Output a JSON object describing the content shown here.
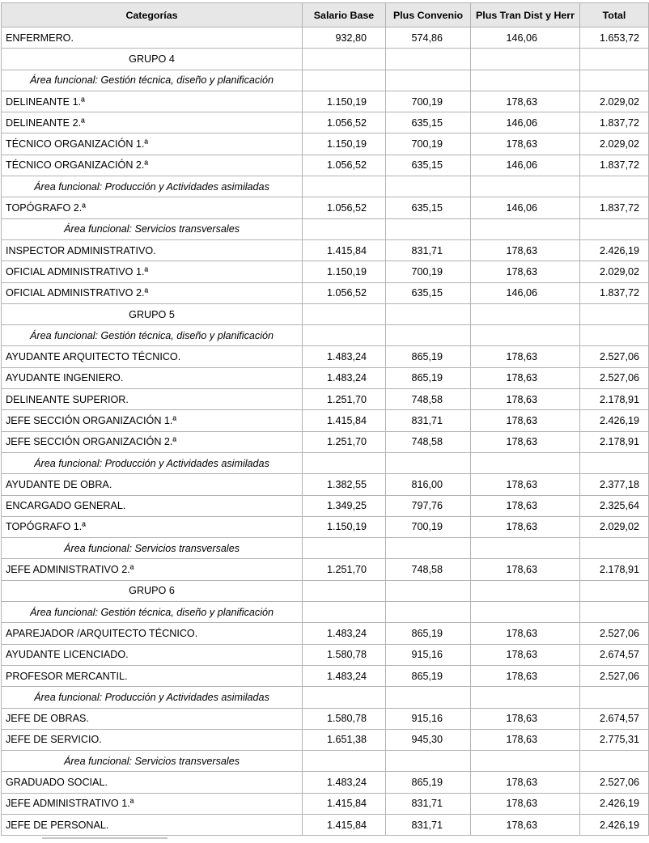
{
  "colors": {
    "header_bg": "#e7e7e7",
    "border": "#b2b2b2",
    "text": "#000000"
  },
  "table": {
    "columns": [
      {
        "key": "categoria",
        "label": "Categorías"
      },
      {
        "key": "salario_base",
        "label": "Salario Base"
      },
      {
        "key": "plus_convenio",
        "label": "Plus Convenio"
      },
      {
        "key": "plus_tran",
        "label": "Plus Tran Dist y Herr"
      },
      {
        "key": "total",
        "label": "Total"
      }
    ],
    "rows": [
      {
        "type": "data",
        "categoria": "ENFERMERO.",
        "salario_base": "932,80",
        "plus_convenio": "574,86",
        "plus_tran": "146,06",
        "total": "1.653,72"
      },
      {
        "type": "group",
        "categoria": "GRUPO 4"
      },
      {
        "type": "area",
        "categoria": "Área funcional: Gestión técnica, diseño y planificación"
      },
      {
        "type": "data",
        "categoria": "DELINEANTE 1.ª",
        "salario_base": "1.150,19",
        "plus_convenio": "700,19",
        "plus_tran": "178,63",
        "total": "2.029,02"
      },
      {
        "type": "data",
        "categoria": "DELINEANTE 2.ª",
        "salario_base": "1.056,52",
        "plus_convenio": "635,15",
        "plus_tran": "146,06",
        "total": "1.837,72"
      },
      {
        "type": "data",
        "categoria": "TÉCNICO ORGANIZACIÓN 1.ª",
        "salario_base": "1.150,19",
        "plus_convenio": "700,19",
        "plus_tran": "178,63",
        "total": "2.029,02"
      },
      {
        "type": "data",
        "categoria": "TÉCNICO ORGANIZACIÓN 2.ª",
        "salario_base": "1.056,52",
        "plus_convenio": "635,15",
        "plus_tran": "146,06",
        "total": "1.837,72"
      },
      {
        "type": "area",
        "categoria": "Área funcional: Producción y Actividades asimiladas"
      },
      {
        "type": "data",
        "categoria": "TOPÓGRAFO 2.ª",
        "salario_base": "1.056,52",
        "plus_convenio": "635,15",
        "plus_tran": "146,06",
        "total": "1.837,72"
      },
      {
        "type": "area",
        "categoria": "Área funcional: Servicios transversales"
      },
      {
        "type": "data",
        "categoria": "INSPECTOR ADMINISTRATIVO.",
        "salario_base": "1.415,84",
        "plus_convenio": "831,71",
        "plus_tran": "178,63",
        "total": "2.426,19"
      },
      {
        "type": "data",
        "categoria": "OFICIAL ADMINISTRATIVO 1.ª",
        "salario_base": "1.150,19",
        "plus_convenio": "700,19",
        "plus_tran": "178,63",
        "total": "2.029,02"
      },
      {
        "type": "data",
        "categoria": "OFICIAL ADMINISTRATIVO 2.ª",
        "salario_base": "1.056,52",
        "plus_convenio": "635,15",
        "plus_tran": "146,06",
        "total": "1.837,72"
      },
      {
        "type": "group",
        "categoria": "GRUPO 5"
      },
      {
        "type": "area",
        "categoria": "Área funcional: Gestión técnica, diseño y planificación"
      },
      {
        "type": "data",
        "categoria": "AYUDANTE ARQUITECTO TÉCNICO.",
        "salario_base": "1.483,24",
        "plus_convenio": "865,19",
        "plus_tran": "178,63",
        "total": "2.527,06"
      },
      {
        "type": "data",
        "categoria": "AYUDANTE INGENIERO.",
        "salario_base": "1.483,24",
        "plus_convenio": "865,19",
        "plus_tran": "178,63",
        "total": "2.527,06"
      },
      {
        "type": "data",
        "categoria": "DELINEANTE SUPERIOR.",
        "salario_base": "1.251,70",
        "plus_convenio": "748,58",
        "plus_tran": "178,63",
        "total": "2.178,91"
      },
      {
        "type": "data",
        "categoria": "JEFE SECCIÓN ORGANIZACIÓN 1.ª",
        "salario_base": "1.415,84",
        "plus_convenio": "831,71",
        "plus_tran": "178,63",
        "total": "2.426,19"
      },
      {
        "type": "data",
        "categoria": "JEFE SECCIÓN ORGANIZACIÓN 2.ª",
        "salario_base": "1.251,70",
        "plus_convenio": "748,58",
        "plus_tran": "178,63",
        "total": "2.178,91"
      },
      {
        "type": "area",
        "categoria": "Área funcional: Producción y Actividades asimiladas"
      },
      {
        "type": "data",
        "categoria": "AYUDANTE DE OBRA.",
        "salario_base": "1.382,55",
        "plus_convenio": "816,00",
        "plus_tran": "178,63",
        "total": "2.377,18"
      },
      {
        "type": "data",
        "categoria": "ENCARGADO GENERAL.",
        "salario_base": "1.349,25",
        "plus_convenio": "797,76",
        "plus_tran": "178,63",
        "total": "2.325,64"
      },
      {
        "type": "data",
        "categoria": "TOPÓGRAFO 1.ª",
        "salario_base": "1.150,19",
        "plus_convenio": "700,19",
        "plus_tran": "178,63",
        "total": "2.029,02"
      },
      {
        "type": "area",
        "categoria": "Área funcional: Servicios transversales"
      },
      {
        "type": "data",
        "categoria": "JEFE ADMINISTRATIVO 2.ª",
        "salario_base": "1.251,70",
        "plus_convenio": "748,58",
        "plus_tran": "178,63",
        "total": "2.178,91"
      },
      {
        "type": "group",
        "categoria": "GRUPO 6"
      },
      {
        "type": "area",
        "categoria": "Área funcional: Gestión técnica, diseño y planificación"
      },
      {
        "type": "data",
        "categoria": "APAREJADOR /ARQUITECTO TÉCNICO.",
        "salario_base": "1.483,24",
        "plus_convenio": "865,19",
        "plus_tran": "178,63",
        "total": "2.527,06"
      },
      {
        "type": "data",
        "categoria": "AYUDANTE LICENCIADO.",
        "salario_base": "1.580,78",
        "plus_convenio": "915,16",
        "plus_tran": "178,63",
        "total": "2.674,57"
      },
      {
        "type": "data",
        "categoria": "PROFESOR MERCANTIL.",
        "salario_base": "1.483,24",
        "plus_convenio": "865,19",
        "plus_tran": "178,63",
        "total": "2.527,06"
      },
      {
        "type": "area",
        "categoria": "Área funcional: Producción y Actividades asimiladas"
      },
      {
        "type": "data",
        "categoria": "JEFE DE OBRAS.",
        "salario_base": "1.580,78",
        "plus_convenio": "915,16",
        "plus_tran": "178,63",
        "total": "2.674,57"
      },
      {
        "type": "data",
        "categoria": "JEFE DE SERVICIO.",
        "salario_base": "1.651,38",
        "plus_convenio": "945,30",
        "plus_tran": "178,63",
        "total": "2.775,31"
      },
      {
        "type": "area",
        "categoria": "Área funcional: Servicios transversales"
      },
      {
        "type": "data",
        "categoria": "GRADUADO SOCIAL.",
        "salario_base": "1.483,24",
        "plus_convenio": "865,19",
        "plus_tran": "178,63",
        "total": "2.527,06"
      },
      {
        "type": "data",
        "categoria": "JEFE ADMINISTRATIVO 1.ª",
        "salario_base": "1.415,84",
        "plus_convenio": "831,71",
        "plus_tran": "178,63",
        "total": "2.426,19"
      },
      {
        "type": "data",
        "categoria": "JEFE DE PERSONAL.",
        "salario_base": "1.415,84",
        "plus_convenio": "831,71",
        "plus_tran": "178,63",
        "total": "2.426,19"
      }
    ]
  }
}
